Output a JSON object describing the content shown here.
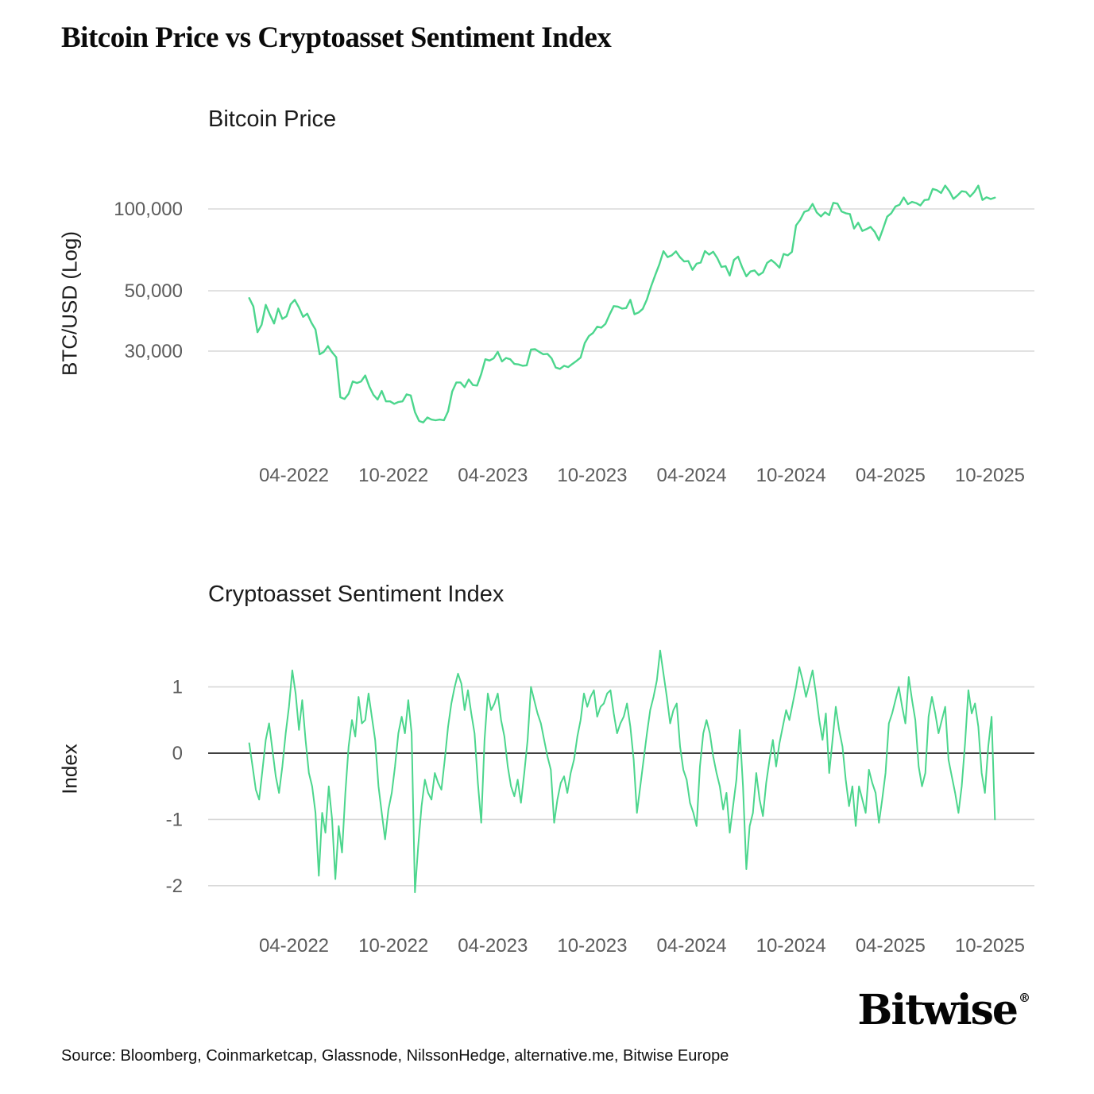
{
  "title": "Bitcoin Price vs Cryptoasset Sentiment Index",
  "source_line": "Source: Bloomberg, Coinmarketcap, Glassnode, NilssonHedge, alternative.me, Bitwise Europe",
  "logo": {
    "text": "Bitwise",
    "reg": "®"
  },
  "colors": {
    "line_green": "#4cd68d",
    "gridline": "#d9d9d9",
    "zero_line": "#000000",
    "tick_text": "#5c5c5c",
    "heading_text": "#1c1c1c"
  },
  "x_ticks": [
    {
      "m": 3,
      "label": "04-2022"
    },
    {
      "m": 9,
      "label": "10-2022"
    },
    {
      "m": 15,
      "label": "04-2023"
    },
    {
      "m": 21,
      "label": "10-2023"
    },
    {
      "m": 27,
      "label": "04-2024"
    },
    {
      "m": 33,
      "label": "10-2024"
    },
    {
      "m": 39,
      "label": "04-2025"
    },
    {
      "m": 45,
      "label": "10-2025"
    }
  ],
  "chart_data": [
    {
      "type": "line",
      "title": "Bitcoin Price",
      "ylabel": "BTC/USD (Log)",
      "yscale": "log",
      "grid": "horizontal",
      "legend": "none",
      "y_ticks": [
        {
          "v": 100,
          "label": "100,000"
        },
        {
          "v": 50,
          "label": "50,000"
        },
        {
          "v": 30,
          "label": "30,000"
        }
      ],
      "x_unit": "months since 2022-01",
      "x_range_shown": [
        -2.2,
        47.7
      ],
      "series": [
        {
          "name": "BTC/USD",
          "unit": "thousand USD",
          "m_start": 0.3,
          "m_step": 0.25,
          "values": [
            47.0,
            43.8,
            35.2,
            37.5,
            44.4,
            40.8,
            37.9,
            43.0,
            39.4,
            40.3,
            44.6,
            46.3,
            43.4,
            40.1,
            41.2,
            38.2,
            36.0,
            29.2,
            29.8,
            31.3,
            29.7,
            28.5,
            20.3,
            20.0,
            20.9,
            23.2,
            22.9,
            23.2,
            24.4,
            22.2,
            20.7,
            19.9,
            21.4,
            19.6,
            19.6,
            19.2,
            19.5,
            19.6,
            20.8,
            20.6,
            17.9,
            16.6,
            16.4,
            17.1,
            16.8,
            16.7,
            16.8,
            16.7,
            18.0,
            21.3,
            23.0,
            23.0,
            22.1,
            23.6,
            22.5,
            22.4,
            24.7,
            28.0,
            27.7,
            28.2,
            29.8,
            27.5,
            28.3,
            28.0,
            26.9,
            26.8,
            26.5,
            26.6,
            30.4,
            30.5,
            29.8,
            29.2,
            29.3,
            28.2,
            26.1,
            25.8,
            26.5,
            26.2,
            26.9,
            27.6,
            28.4,
            32.1,
            34.1,
            35.0,
            36.9,
            36.6,
            37.8,
            40.9,
            43.9,
            43.7,
            43.0,
            43.2,
            46.3,
            41.0,
            41.6,
            42.9,
            46.5,
            51.9,
            57.1,
            62.5,
            69.9,
            66.5,
            67.5,
            69.8,
            66.4,
            64.1,
            64.3,
            59.7,
            62.9,
            63.5,
            70.0,
            67.9,
            69.6,
            65.9,
            61.2,
            61.6,
            56.9,
            64.9,
            66.8,
            61.0,
            56.5,
            58.9,
            59.4,
            57.1,
            58.4,
            63.3,
            64.9,
            63.1,
            60.8,
            68.3,
            67.5,
            69.5,
            87.0,
            91.2,
            97.6,
            98.8,
            104.4,
            97.1,
            93.9,
            97.2,
            94.9,
            105.3,
            104.6,
            97.9,
            96.4,
            95.8,
            84.7,
            89.0,
            83.0,
            84.3,
            85.9,
            82.4,
            76.8,
            84.6,
            93.7,
            96.5,
            102.1,
            103.6,
            110.2,
            104.1,
            106.2,
            105.1,
            103.0,
            107.8,
            108.3,
            118.5,
            117.2,
            114.5,
            121.9,
            116.3,
            108.9,
            112.2,
            116.2,
            115.6,
            111.1,
            115.3,
            121.8,
            107.9,
            110.4,
            108.8,
            110.1
          ]
        }
      ]
    },
    {
      "type": "line",
      "title": "Cryptoasset Sentiment Index",
      "ylabel": "Index",
      "yscale": "linear",
      "grid": "horizontal",
      "legend": "none",
      "zero_line": true,
      "y_ticks": [
        {
          "v": 1,
          "label": "1"
        },
        {
          "v": 0,
          "label": "0"
        },
        {
          "v": -1,
          "label": "-1"
        },
        {
          "v": -2,
          "label": "-2"
        }
      ],
      "x_unit": "months since 2022-01",
      "x_range_shown": [
        -2.2,
        47.7
      ],
      "series": [
        {
          "name": "Cryptoasset Sentiment Index",
          "unit": "index (z-score)",
          "m_start": 0.3,
          "m_step": 0.2,
          "values": [
            0.15,
            -0.2,
            -0.55,
            -0.7,
            -0.25,
            0.2,
            0.45,
            0.05,
            -0.35,
            -0.6,
            -0.2,
            0.3,
            0.7,
            1.25,
            0.9,
            0.35,
            0.8,
            0.2,
            -0.3,
            -0.5,
            -0.9,
            -1.85,
            -0.9,
            -1.2,
            -0.5,
            -1.0,
            -1.9,
            -1.1,
            -1.5,
            -0.6,
            0.1,
            0.5,
            0.25,
            0.85,
            0.45,
            0.5,
            0.9,
            0.55,
            0.2,
            -0.5,
            -0.9,
            -1.3,
            -0.85,
            -0.6,
            -0.2,
            0.3,
            0.55,
            0.3,
            0.8,
            0.3,
            -2.1,
            -1.4,
            -0.8,
            -0.4,
            -0.6,
            -0.7,
            -0.3,
            -0.45,
            -0.55,
            -0.1,
            0.4,
            0.75,
            1.0,
            1.2,
            1.05,
            0.65,
            0.95,
            0.6,
            0.3,
            -0.45,
            -1.05,
            0.2,
            0.9,
            0.65,
            0.75,
            0.9,
            0.5,
            0.25,
            -0.2,
            -0.5,
            -0.65,
            -0.4,
            -0.75,
            -0.3,
            0.2,
            1.0,
            0.8,
            0.6,
            0.45,
            0.2,
            -0.05,
            -0.25,
            -1.05,
            -0.7,
            -0.45,
            -0.35,
            -0.6,
            -0.3,
            -0.1,
            0.25,
            0.5,
            0.9,
            0.7,
            0.85,
            0.95,
            0.55,
            0.7,
            0.75,
            0.9,
            0.95,
            0.6,
            0.3,
            0.45,
            0.55,
            0.75,
            0.4,
            -0.1,
            -0.9,
            -0.5,
            -0.1,
            0.3,
            0.65,
            0.85,
            1.1,
            1.55,
            1.2,
            0.85,
            0.45,
            0.65,
            0.75,
            0.1,
            -0.25,
            -0.4,
            -0.75,
            -0.9,
            -1.1,
            -0.2,
            0.3,
            0.5,
            0.3,
            -0.05,
            -0.3,
            -0.5,
            -0.85,
            -0.6,
            -1.2,
            -0.8,
            -0.4,
            0.35,
            -0.5,
            -1.75,
            -1.1,
            -0.9,
            -0.3,
            -0.7,
            -0.95,
            -0.45,
            -0.1,
            0.2,
            -0.2,
            0.15,
            0.4,
            0.65,
            0.5,
            0.75,
            1.0,
            1.3,
            1.1,
            0.85,
            1.05,
            1.25,
            0.9,
            0.5,
            0.2,
            0.6,
            -0.3,
            0.2,
            0.7,
            0.35,
            0.1,
            -0.4,
            -0.8,
            -0.5,
            -1.1,
            -0.5,
            -0.7,
            -0.9,
            -0.25,
            -0.45,
            -0.6,
            -1.05,
            -0.7,
            -0.3,
            0.45,
            0.6,
            0.8,
            1.0,
            0.7,
            0.45,
            1.15,
            0.8,
            0.5,
            -0.2,
            -0.5,
            -0.3,
            0.55,
            0.85,
            0.6,
            0.3,
            0.5,
            0.7,
            -0.1,
            -0.35,
            -0.6,
            -0.9,
            -0.5,
            0.15,
            0.95,
            0.6,
            0.75,
            0.4,
            -0.3,
            -0.6,
            0.1,
            0.55,
            -1.0
          ]
        }
      ]
    }
  ]
}
